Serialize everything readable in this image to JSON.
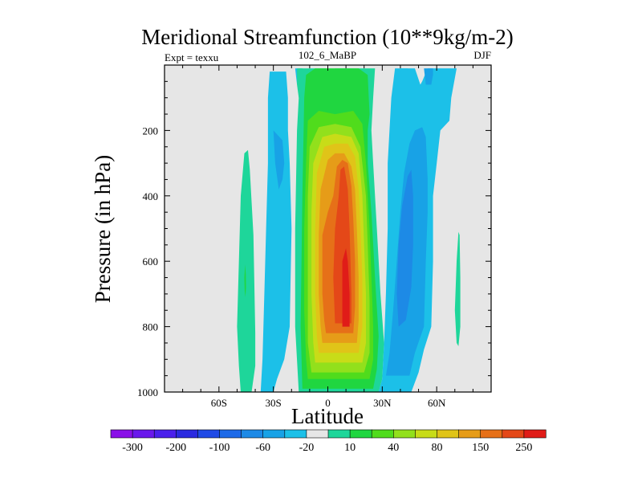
{
  "chart_data": {
    "type": "heatmap",
    "title": "Meridional Streamfunction (10**9kg/m-2)",
    "subtitle_left": "Expt = texxu",
    "subtitle_center": "102_6_MaBP",
    "subtitle_right": "DJF",
    "xlabel": "Latitude",
    "ylabel": "Pressure (in hPa)",
    "xlim": [
      -90,
      90
    ],
    "ylim": [
      0,
      1000
    ],
    "x_ticks": [
      {
        "value": -60,
        "label": "60S"
      },
      {
        "value": -30,
        "label": "30S"
      },
      {
        "value": 0,
        "label": "0"
      },
      {
        "value": 30,
        "label": "30N"
      },
      {
        "value": 60,
        "label": "60N"
      }
    ],
    "y_ticks": [
      {
        "value": 200,
        "label": "200"
      },
      {
        "value": 400,
        "label": "400"
      },
      {
        "value": 600,
        "label": "600"
      },
      {
        "value": 800,
        "label": "800"
      },
      {
        "value": 1000,
        "label": "1000"
      }
    ],
    "colorbar": {
      "colors": [
        "#8a10e8",
        "#6a18ec",
        "#4a20ec",
        "#2a2ae0",
        "#1f4ae6",
        "#1d6ae8",
        "#1d8ae6",
        "#18a2e6",
        "#1cc0e8",
        "#e6e6e6",
        "#1ed69a",
        "#20d640",
        "#50dc1c",
        "#92e01c",
        "#c8dc18",
        "#e0c418",
        "#e69c18",
        "#e67018",
        "#e44818",
        "#e01c18"
      ],
      "labels": [
        {
          "after": 1,
          "label": "-300"
        },
        {
          "after": 3,
          "label": "-200"
        },
        {
          "after": 5,
          "label": "-100"
        },
        {
          "after": 7,
          "label": "-60"
        },
        {
          "after": 9,
          "label": "-20"
        },
        {
          "after": 11,
          "label": "10"
        },
        {
          "after": 13,
          "label": "40"
        },
        {
          "after": 15,
          "label": "80"
        },
        {
          "after": 17,
          "label": "150"
        },
        {
          "after": 19,
          "label": "250"
        }
      ]
    },
    "background_color": "#e6e6e6",
    "contours": [
      {
        "name": "sh-mid-cell",
        "color": "#1ed69a",
        "pts": [
          [
            -48,
            1000
          ],
          [
            -42,
            1000
          ],
          [
            -40,
            920
          ],
          [
            -40,
            820
          ],
          [
            -41,
            520
          ],
          [
            -43,
            320
          ],
          [
            -44,
            260
          ],
          [
            -46,
            270
          ],
          [
            -48,
            400
          ],
          [
            -49,
            600
          ],
          [
            -50,
            800
          ],
          [
            -49,
            920
          ]
        ]
      },
      {
        "name": "sh-mid-cell-core",
        "color": "#20d640",
        "pts": [
          [
            -45.6,
            610
          ],
          [
            -45.2,
            640
          ],
          [
            -45.1,
            680
          ],
          [
            -45.4,
            710
          ],
          [
            -45.8,
            690
          ],
          [
            -46,
            650
          ]
        ]
      },
      {
        "name": "sh-ferrel-cell",
        "color": "#1cc0e8",
        "pts": [
          [
            -37,
            1000
          ],
          [
            -30,
            1000
          ],
          [
            -28,
            960
          ],
          [
            -24,
            900
          ],
          [
            -21,
            800
          ],
          [
            -20,
            500
          ],
          [
            -21,
            300
          ],
          [
            -22,
            200
          ],
          [
            -22,
            100
          ],
          [
            -23,
            20
          ],
          [
            -32,
            20
          ],
          [
            -33,
            100
          ],
          [
            -33,
            300
          ],
          [
            -34,
            500
          ],
          [
            -35,
            700
          ],
          [
            -36,
            900
          ]
        ]
      },
      {
        "name": "sh-ferrel-core",
        "color": "#18a2e6",
        "pts": [
          [
            -30,
            200
          ],
          [
            -25,
            230
          ],
          [
            -24,
            300
          ],
          [
            -25,
            350
          ],
          [
            -27,
            380
          ],
          [
            -29,
            300
          ]
        ]
      },
      {
        "name": "sh-polar-strip",
        "color": "#1cc0e8",
        "pts": [
          [
            -18,
            10
          ],
          [
            -14,
            10
          ],
          [
            -15,
            50
          ],
          [
            -17,
            60
          ]
        ]
      },
      {
        "name": "hadley-10",
        "color": "#1ed69a",
        "pts": [
          [
            -16,
            1000
          ],
          [
            28,
            1000
          ],
          [
            30,
            960
          ],
          [
            31,
            850
          ],
          [
            29,
            700
          ],
          [
            27,
            500
          ],
          [
            25,
            300
          ],
          [
            24,
            200
          ],
          [
            25,
            100
          ],
          [
            26,
            10
          ],
          [
            -16,
            10
          ],
          [
            -16,
            100
          ],
          [
            -17,
            200
          ],
          [
            -18,
            500
          ],
          [
            -18,
            800
          ]
        ]
      },
      {
        "name": "polar-tongue-right",
        "color": "#e6e6e6",
        "pts": [
          [
            -1,
            10
          ],
          [
            4,
            10
          ],
          [
            3,
            60
          ],
          [
            1,
            70
          ]
        ]
      },
      {
        "name": "hadley-20",
        "color": "#20d640",
        "pts": [
          [
            -14,
            990
          ],
          [
            25,
            990
          ],
          [
            27,
            930
          ],
          [
            28,
            830
          ],
          [
            26,
            650
          ],
          [
            24,
            450
          ],
          [
            22,
            300
          ],
          [
            22,
            200
          ],
          [
            23,
            150
          ],
          [
            22,
            30
          ],
          [
            17,
            10
          ],
          [
            -7,
            10
          ],
          [
            -12,
            30
          ],
          [
            -13,
            100
          ],
          [
            -14,
            400
          ],
          [
            -15,
            800
          ]
        ]
      },
      {
        "name": "hadley-40",
        "color": "#50dc1c",
        "pts": [
          [
            -11,
            960
          ],
          [
            23,
            960
          ],
          [
            25,
            900
          ],
          [
            25,
            800
          ],
          [
            24,
            650
          ],
          [
            23,
            500
          ],
          [
            21,
            300
          ],
          [
            19,
            180
          ],
          [
            14,
            140
          ],
          [
            4,
            150
          ],
          [
            -5,
            140
          ],
          [
            -11,
            170
          ],
          [
            -12,
            300
          ],
          [
            -13,
            500
          ],
          [
            -13,
            750
          ],
          [
            -12,
            900
          ]
        ]
      },
      {
        "name": "hadley-60",
        "color": "#92e01c",
        "pts": [
          [
            -9,
            940
          ],
          [
            20,
            940
          ],
          [
            23,
            880
          ],
          [
            23,
            720
          ],
          [
            22,
            550
          ],
          [
            21,
            400
          ],
          [
            18,
            250
          ],
          [
            13,
            190
          ],
          [
            4,
            180
          ],
          [
            -5,
            190
          ],
          [
            -10,
            250
          ],
          [
            -11,
            400
          ],
          [
            -11,
            700
          ],
          [
            -11,
            850
          ]
        ]
      },
      {
        "name": "hadley-80",
        "color": "#c8dc18",
        "pts": [
          [
            -7,
            910
          ],
          [
            19,
            910
          ],
          [
            21,
            850
          ],
          [
            21,
            700
          ],
          [
            20,
            550
          ],
          [
            19,
            400
          ],
          [
            17,
            270
          ],
          [
            13,
            220
          ],
          [
            4,
            210
          ],
          [
            -3,
            220
          ],
          [
            -8,
            300
          ],
          [
            -9,
            450
          ],
          [
            -9,
            700
          ],
          [
            -8,
            850
          ]
        ]
      },
      {
        "name": "hadley-100",
        "color": "#e0c418",
        "pts": [
          [
            -5,
            880
          ],
          [
            17,
            880
          ],
          [
            19,
            800
          ],
          [
            19,
            650
          ],
          [
            18,
            500
          ],
          [
            17,
            380
          ],
          [
            15,
            280
          ],
          [
            11,
            240
          ],
          [
            4,
            240
          ],
          [
            -2,
            250
          ],
          [
            -6,
            330
          ],
          [
            -7,
            500
          ],
          [
            -7,
            700
          ],
          [
            -6,
            830
          ]
        ]
      },
      {
        "name": "hadley-150",
        "color": "#e69c18",
        "pts": [
          [
            -3,
            850
          ],
          [
            16,
            850
          ],
          [
            17,
            780
          ],
          [
            17,
            650
          ],
          [
            16,
            500
          ],
          [
            15,
            380
          ],
          [
            13,
            310
          ],
          [
            9,
            270
          ],
          [
            4,
            270
          ],
          [
            0,
            290
          ],
          [
            -4,
            380
          ],
          [
            -5,
            520
          ],
          [
            -5,
            700
          ],
          [
            -4,
            800
          ]
        ]
      },
      {
        "name": "hadley-200",
        "color": "#e67018",
        "pts": [
          [
            -1,
            820
          ],
          [
            14,
            820
          ],
          [
            15,
            740
          ],
          [
            15,
            600
          ],
          [
            14,
            470
          ],
          [
            13,
            370
          ],
          [
            11,
            300
          ],
          [
            8,
            290
          ],
          [
            5,
            310
          ],
          [
            3,
            400
          ],
          [
            0,
            450
          ],
          [
            -3,
            520
          ],
          [
            -3,
            700
          ],
          [
            -2,
            780
          ]
        ]
      },
      {
        "name": "hadley-250",
        "color": "#e44818",
        "pts": [
          [
            4,
            790
          ],
          [
            13,
            790
          ],
          [
            13,
            700
          ],
          [
            12,
            500
          ],
          [
            11,
            380
          ],
          [
            9,
            310
          ],
          [
            7,
            320
          ],
          [
            6,
            400
          ],
          [
            4,
            500
          ],
          [
            3,
            650
          ]
        ]
      },
      {
        "name": "hadley-max",
        "color": "#e01c18",
        "pts": [
          [
            8,
            800
          ],
          [
            12,
            800
          ],
          [
            12,
            700
          ],
          [
            11,
            600
          ],
          [
            10,
            560
          ],
          [
            8,
            600
          ],
          [
            8,
            700
          ]
        ]
      },
      {
        "name": "sh-polar-green",
        "color": "#1ed69a",
        "pts": [
          [
            -17,
            10
          ],
          [
            -14,
            10
          ],
          [
            -13,
            60
          ],
          [
            -16,
            100
          ],
          [
            -17,
            60
          ]
        ]
      },
      {
        "name": "nh-ferrel-outer",
        "color": "#1cc0e8",
        "pts": [
          [
            28,
            1000
          ],
          [
            46,
            1000
          ],
          [
            50,
            940
          ],
          [
            53,
            870
          ],
          [
            57,
            800
          ],
          [
            58,
            600
          ],
          [
            58,
            400
          ],
          [
            60,
            300
          ],
          [
            62,
            200
          ],
          [
            67,
            170
          ],
          [
            68,
            100
          ],
          [
            71,
            10
          ],
          [
            55,
            10
          ],
          [
            52,
            50
          ],
          [
            51,
            60
          ],
          [
            48,
            10
          ],
          [
            37,
            10
          ],
          [
            35,
            100
          ],
          [
            33,
            300
          ],
          [
            33,
            500
          ],
          [
            32,
            700
          ],
          [
            31,
            850
          ],
          [
            30,
            960
          ]
        ]
      },
      {
        "name": "nh-ferrel-inner",
        "color": "#18a2e6",
        "pts": [
          [
            32,
            950
          ],
          [
            45,
            950
          ],
          [
            48,
            880
          ],
          [
            53,
            800
          ],
          [
            54,
            600
          ],
          [
            55,
            450
          ],
          [
            55,
            350
          ],
          [
            54,
            220
          ],
          [
            52,
            190
          ],
          [
            48,
            200
          ],
          [
            45,
            240
          ],
          [
            42,
            330
          ],
          [
            40,
            450
          ],
          [
            38,
            600
          ],
          [
            36,
            750
          ],
          [
            34,
            880
          ]
        ]
      },
      {
        "name": "nh-ferrel-core",
        "color": "#1d8ae6",
        "pts": [
          [
            39,
            800
          ],
          [
            43,
            780
          ],
          [
            46,
            680
          ],
          [
            47,
            550
          ],
          [
            47,
            400
          ],
          [
            46,
            320
          ],
          [
            44,
            340
          ],
          [
            41,
            430
          ],
          [
            39,
            550
          ],
          [
            38,
            700
          ]
        ]
      },
      {
        "name": "nh-ferrel-top",
        "color": "#18a2e6",
        "pts": [
          [
            53,
            10
          ],
          [
            58,
            10
          ],
          [
            58,
            30
          ],
          [
            57,
            60
          ],
          [
            54,
            60
          ]
        ]
      },
      {
        "name": "nh-top-light",
        "color": "#1cc0e8",
        "pts": [
          [
            40,
            10
          ],
          [
            44,
            10
          ],
          [
            43,
            40
          ],
          [
            41,
            40
          ]
        ]
      },
      {
        "name": "nh-polar-cell",
        "color": "#1ed69a",
        "pts": [
          [
            72,
            860
          ],
          [
            73,
            800
          ],
          [
            73,
            650
          ],
          [
            72.6,
            520
          ],
          [
            72,
            510
          ],
          [
            71,
            600
          ],
          [
            70,
            750
          ],
          [
            71,
            850
          ]
        ]
      }
    ]
  }
}
